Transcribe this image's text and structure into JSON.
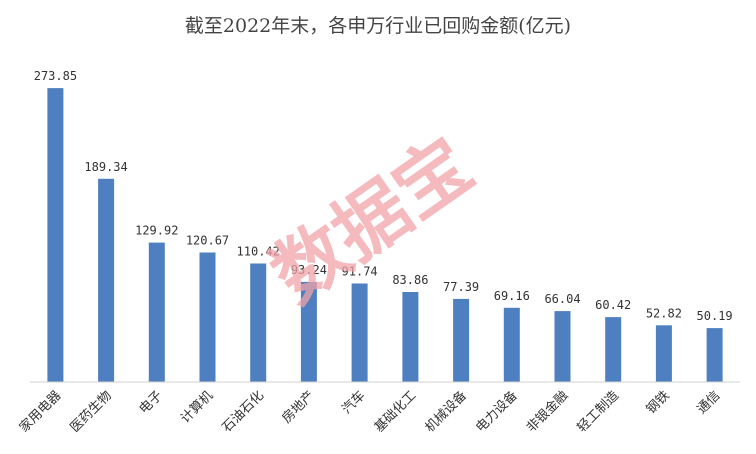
{
  "chart_data": {
    "type": "bar",
    "title": "截至2022年末，各申万行业已回购金额(亿元)",
    "categories": [
      "家用电器",
      "医药生物",
      "电子",
      "计算机",
      "石油石化",
      "房地产",
      "汽车",
      "基础化工",
      "机械设备",
      "电力设备",
      "非银金融",
      "轻工制造",
      "钢铁",
      "通信"
    ],
    "values": [
      273.85,
      189.34,
      129.92,
      120.67,
      110.42,
      93.24,
      91.74,
      83.86,
      77.39,
      69.16,
      66.04,
      60.42,
      52.82,
      50.19
    ],
    "value_labels": [
      "273.85",
      "189.34",
      "129.92",
      "120.67",
      "110.42",
      "93.24",
      "91.74",
      "83.86",
      "77.39",
      "69.16",
      "66.04",
      "60.42",
      "52.82",
      "50.19"
    ],
    "ylim": [
      0,
      300
    ],
    "grid": false,
    "legend": "none",
    "bar_color": "#4e7fc0",
    "axis_color": "#d0d0d0"
  },
  "watermark": {
    "text": "数据宝",
    "color": "#f2a3a8"
  }
}
